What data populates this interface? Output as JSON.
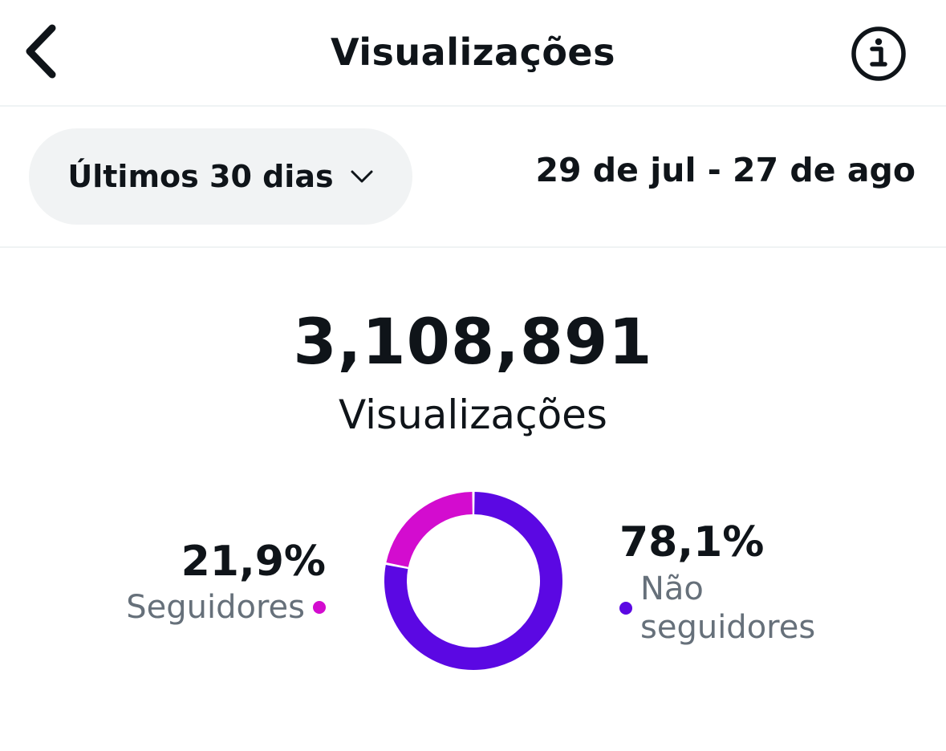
{
  "header": {
    "title": "Visualizações"
  },
  "range": {
    "selected": "Últimos 30 dias",
    "dates": "29 de jul - 27 de ago"
  },
  "summary": {
    "total": "3,108,891",
    "label": "Visualizações"
  },
  "breakdown": {
    "followers": {
      "percent": "21,9%",
      "label": "Seguidores",
      "color": "#d30ccf",
      "value": 21.9
    },
    "non_followers": {
      "percent": "78,1%",
      "label": "Não seguidores",
      "color": "#5b08e3",
      "value": 78.1
    }
  }
}
